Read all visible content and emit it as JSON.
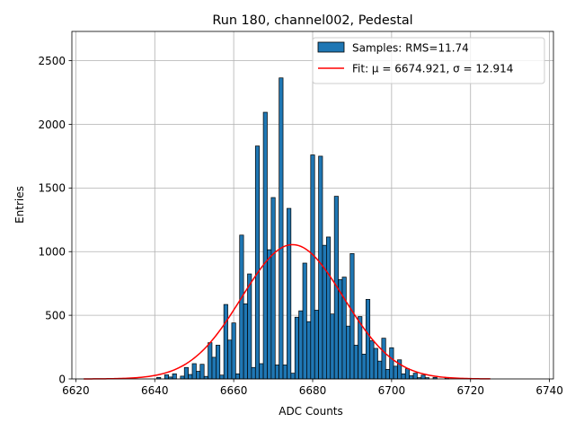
{
  "chart_data": {
    "type": "bar",
    "subtype": "histogram",
    "title": "Run 180, channel002, Pedestal",
    "xlabel": "ADC Counts",
    "ylabel": "Entries",
    "xlim": [
      6619,
      6741
    ],
    "ylim": [
      0,
      2730
    ],
    "xticks": [
      6620,
      6640,
      6660,
      6680,
      6700,
      6720,
      6740
    ],
    "yticks": [
      0,
      500,
      1000,
      1500,
      2000,
      2500
    ],
    "grid": true,
    "legend_position": "top-right",
    "bin_width": 1,
    "bins": [
      [
        6641,
        12
      ],
      [
        6643,
        32
      ],
      [
        6644,
        15
      ],
      [
        6645,
        40
      ],
      [
        6647,
        22
      ],
      [
        6648,
        90
      ],
      [
        6649,
        35
      ],
      [
        6650,
        120
      ],
      [
        6651,
        60
      ],
      [
        6652,
        115
      ],
      [
        6653,
        20
      ],
      [
        6654,
        285
      ],
      [
        6655,
        170
      ],
      [
        6656,
        265
      ],
      [
        6657,
        30
      ],
      [
        6658,
        585
      ],
      [
        6659,
        305
      ],
      [
        6660,
        440
      ],
      [
        6661,
        40
      ],
      [
        6662,
        1130
      ],
      [
        6663,
        590
      ],
      [
        6664,
        825
      ],
      [
        6665,
        90
      ],
      [
        6666,
        1830
      ],
      [
        6667,
        120
      ],
      [
        6668,
        2095
      ],
      [
        6669,
        1015
      ],
      [
        6670,
        1425
      ],
      [
        6671,
        110
      ],
      [
        6672,
        2365
      ],
      [
        6673,
        110
      ],
      [
        6674,
        1340
      ],
      [
        6675,
        45
      ],
      [
        6676,
        485
      ],
      [
        6677,
        535
      ],
      [
        6678,
        910
      ],
      [
        6679,
        450
      ],
      [
        6680,
        1760
      ],
      [
        6681,
        540
      ],
      [
        6682,
        1750
      ],
      [
        6683,
        1050
      ],
      [
        6684,
        1115
      ],
      [
        6685,
        510
      ],
      [
        6686,
        1435
      ],
      [
        6687,
        780
      ],
      [
        6688,
        800
      ],
      [
        6689,
        415
      ],
      [
        6690,
        985
      ],
      [
        6691,
        265
      ],
      [
        6692,
        490
      ],
      [
        6693,
        195
      ],
      [
        6694,
        625
      ],
      [
        6695,
        300
      ],
      [
        6696,
        240
      ],
      [
        6697,
        140
      ],
      [
        6698,
        320
      ],
      [
        6699,
        75
      ],
      [
        6700,
        245
      ],
      [
        6701,
        100
      ],
      [
        6702,
        150
      ],
      [
        6703,
        40
      ],
      [
        6704,
        80
      ],
      [
        6705,
        25
      ],
      [
        6706,
        45
      ],
      [
        6707,
        10
      ],
      [
        6708,
        30
      ],
      [
        6709,
        10
      ],
      [
        6711,
        12
      ],
      [
        6714,
        8
      ]
    ],
    "series": [
      {
        "name": "Samples: RMS=11.74",
        "kind": "histogram",
        "color": "#1f77b4",
        "edgecolor": "#000000"
      },
      {
        "name": "Fit: μ = 6674.921, σ = 12.914",
        "kind": "line",
        "color": "#ff0000",
        "function": "gaussian",
        "mu": 6674.921,
        "sigma": 12.914,
        "amplitude": 1055,
        "x_range": [
          6622,
          6725
        ]
      }
    ]
  }
}
